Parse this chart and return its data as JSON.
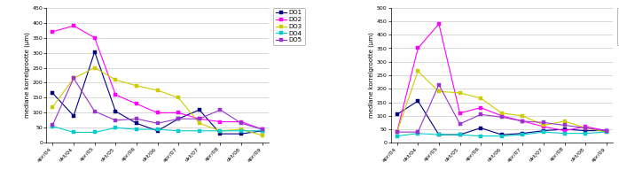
{
  "x_labels": [
    "apr/04",
    "okt/04",
    "apr/05",
    "okt/05",
    "apr/06",
    "okt/06",
    "apr/07",
    "okt/07",
    "apr/08",
    "okt/08",
    "apr/09"
  ],
  "left": {
    "DO1": [
      165,
      90,
      303,
      105,
      65,
      40,
      80,
      110,
      30,
      30,
      40
    ],
    "DO2": [
      370,
      390,
      350,
      160,
      130,
      100,
      100,
      80,
      70,
      70,
      45
    ],
    "DO3": [
      120,
      215,
      250,
      210,
      190,
      175,
      150,
      65,
      40,
      45,
      25
    ],
    "DO4": [
      55,
      35,
      35,
      50,
      45,
      45,
      40,
      40,
      40,
      40,
      40
    ],
    "DO5": [
      60,
      215,
      105,
      75,
      80,
      65,
      80,
      80,
      110,
      65,
      45
    ]
  },
  "right": {
    "DO1": [
      105,
      155,
      30,
      30,
      55,
      30,
      35,
      45,
      50,
      45,
      45
    ],
    "DO2": [
      40,
      350,
      440,
      110,
      130,
      100,
      80,
      60,
      45,
      60,
      45
    ],
    "DO3": [
      40,
      265,
      190,
      185,
      165,
      110,
      100,
      65,
      80,
      55,
      40
    ],
    "DO4": [
      25,
      35,
      30,
      30,
      25,
      25,
      30,
      40,
      35,
      35,
      40
    ],
    "DO5": [
      40,
      40,
      215,
      70,
      105,
      95,
      80,
      75,
      65,
      55,
      45
    ]
  },
  "colors": {
    "DO1": "#00007F",
    "DO2": "#FF00FF",
    "DO3": "#CCCC00",
    "DO4": "#00CCCC",
    "DO5": "#9933CC"
  },
  "left_ylim": [
    0,
    450
  ],
  "right_ylim": [
    0,
    500
  ],
  "left_yticks": [
    0,
    50,
    100,
    150,
    200,
    250,
    300,
    350,
    400,
    450
  ],
  "right_yticks": [
    0,
    50,
    100,
    150,
    200,
    250,
    300,
    350,
    400,
    450,
    500
  ],
  "ylabel": "mediane korrelgrootte (µm)",
  "legend_labels": [
    "DO1",
    "DO2",
    "DO3",
    "DO4",
    "DO5"
  ],
  "marker": "s",
  "markersize": 2.5,
  "linewidth": 0.8,
  "bg_color": "#FFFFFF",
  "grid_color": "#BBBBBB",
  "tick_fontsize": 4.5,
  "ylabel_fontsize": 5.0,
  "legend_fontsize": 5.0
}
